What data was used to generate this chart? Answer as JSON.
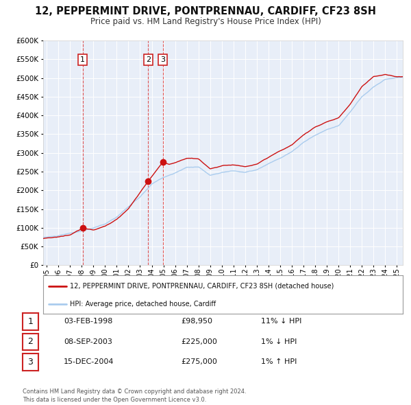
{
  "title": "12, PEPPERMINT DRIVE, PONTPRENNAU, CARDIFF, CF23 8SH",
  "subtitle": "Price paid vs. HM Land Registry's House Price Index (HPI)",
  "title_fontsize": 10.5,
  "subtitle_fontsize": 8.5,
  "background_color": "#ffffff",
  "plot_bg_color": "#e8eef8",
  "grid_color": "#ffffff",
  "ylim": [
    0,
    600000
  ],
  "yticks": [
    0,
    50000,
    100000,
    150000,
    200000,
    250000,
    300000,
    350000,
    400000,
    450000,
    500000,
    550000,
    600000
  ],
  "xlim_start": 1994.7,
  "xlim_end": 2025.5,
  "xtick_years": [
    1995,
    1996,
    1997,
    1998,
    1999,
    2000,
    2001,
    2002,
    2003,
    2004,
    2005,
    2006,
    2007,
    2008,
    2009,
    2010,
    2011,
    2012,
    2013,
    2014,
    2015,
    2016,
    2017,
    2018,
    2019,
    2020,
    2021,
    2022,
    2023,
    2024,
    2025
  ],
  "hpi_color": "#aaccee",
  "price_color": "#cc1111",
  "dot_color": "#cc1111",
  "vline_color": "#dd4444",
  "sale_markers": [
    {
      "label": "1",
      "year": 1998.09,
      "price": 98950
    },
    {
      "label": "2",
      "year": 2003.69,
      "price": 225000
    },
    {
      "label": "3",
      "year": 2004.96,
      "price": 275000
    }
  ],
  "legend_entries": [
    {
      "color": "#cc1111",
      "text": "12, PEPPERMINT DRIVE, PONTPRENNAU, CARDIFF, CF23 8SH (detached house)"
    },
    {
      "color": "#aaccee",
      "text": "HPI: Average price, detached house, Cardiff"
    }
  ],
  "table_entries": [
    {
      "num": "1",
      "date": "03-FEB-1998",
      "price": "£98,950",
      "hpi": "11% ↓ HPI"
    },
    {
      "num": "2",
      "date": "08-SEP-2003",
      "price": "£225,000",
      "hpi": "1% ↓ HPI"
    },
    {
      "num": "3",
      "date": "15-DEC-2004",
      "price": "£275,000",
      "hpi": "1% ↑ HPI"
    }
  ],
  "footer": "Contains HM Land Registry data © Crown copyright and database right 2024.\nThis data is licensed under the Open Government Licence v3.0."
}
